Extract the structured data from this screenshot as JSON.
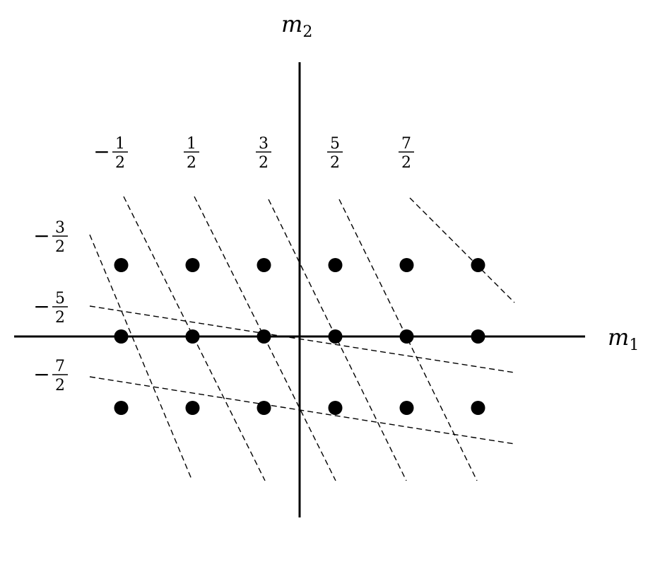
{
  "axes": {
    "horizontal": {
      "symbol": "m",
      "subscript": "1"
    },
    "vertical": {
      "symbol": "m",
      "subscript": "2"
    }
  },
  "lattice": {
    "m1": [
      -2.5,
      -1.5,
      -0.5,
      0.5,
      1.5,
      2.5
    ],
    "m2": [
      1,
      0,
      -1
    ]
  },
  "diagonal_labels": [
    {
      "sign": "−",
      "num": "1",
      "den": "2"
    },
    {
      "sign": "",
      "num": "1",
      "den": "2"
    },
    {
      "sign": "",
      "num": "3",
      "den": "2"
    },
    {
      "sign": "",
      "num": "5",
      "den": "2"
    },
    {
      "sign": "",
      "num": "7",
      "den": "2"
    }
  ],
  "side_labels": [
    {
      "sign": "−",
      "num": "3",
      "den": "2"
    },
    {
      "sign": "−",
      "num": "5",
      "den": "2"
    },
    {
      "sign": "−",
      "num": "7",
      "den": "2"
    }
  ],
  "colors": {
    "ink": "#000000",
    "background": "#ffffff"
  }
}
